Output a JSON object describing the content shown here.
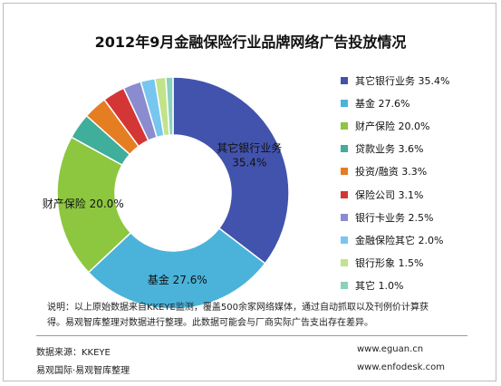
{
  "chart_data": {
    "type": "pie",
    "title": "2012年9月金融保险行业品牌网络广告投放情况",
    "categories": [
      "其它银行业务",
      "基金",
      "财产保险",
      "贷款业务",
      "投资/融资",
      "保险公司",
      "银行卡业务",
      "金融保险其它",
      "银行形象",
      "其它"
    ],
    "values": [
      35.4,
      27.6,
      20.0,
      3.6,
      3.3,
      3.1,
      2.5,
      2.0,
      1.5,
      1.0
    ],
    "unit": "%",
    "colors": [
      "#4253ad",
      "#4bb3d9",
      "#8dc63f",
      "#3fae9a",
      "#e57d23",
      "#d43636",
      "#8b8ccf",
      "#77c6ef",
      "#c2e38b",
      "#89d2bd"
    ],
    "legend": [
      "其它银行业务 35.4%",
      "基金 27.6%",
      "财产保险 20.0%",
      "贷款业务 3.6%",
      "投资/融资 3.3%",
      "保险公司 3.1%",
      "银行卡业务 2.5%",
      "金融保险其它 2.0%",
      "银行形象 1.5%",
      "其它 1.0%"
    ],
    "legend_position": "right",
    "slice_labels": [
      {
        "lines": [
          "其它银行业务",
          "35.4%"
        ]
      },
      {
        "lines": [
          "基金 27.6%"
        ]
      },
      {
        "lines": [
          "财产保险 20.0%"
        ]
      }
    ]
  },
  "note": {
    "line1": "说明：以上原始数据来自KKEYE监测，覆盖500余家网络媒体，通过自动抓取以及刊例价计算获",
    "line2": "得。易观智库整理对数据进行整理。此数据可能会与厂商实际广告支出存在差异。"
  },
  "footer": {
    "source": "数据来源：KKEYE",
    "org": "易观国际·易观智库整理",
    "url1": "www.eguan.cn",
    "url2": "www.enfodesk.com"
  }
}
